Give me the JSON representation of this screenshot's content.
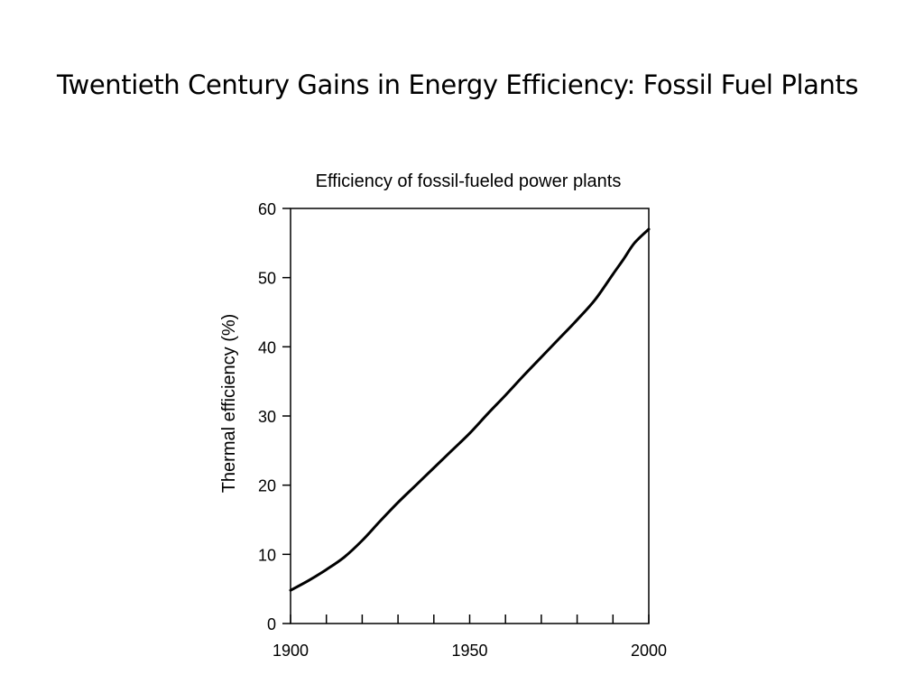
{
  "slide": {
    "title": "Twentieth Century Gains in Energy Efficiency: Fossil Fuel Plants"
  },
  "chart_data": {
    "type": "line",
    "title": "Efficiency of fossil-fueled power plants",
    "xlabel": "",
    "ylabel": "Thermal efficiency (%)",
    "xlim": [
      1900,
      2000
    ],
    "ylim": [
      0,
      60
    ],
    "xticks": [
      1900,
      1950,
      2000
    ],
    "x_minor_step": 10,
    "yticks": [
      0,
      10,
      20,
      30,
      40,
      50,
      60
    ],
    "grid": false,
    "line_color": "#000000",
    "series": [
      {
        "x": [
          1900,
          1905,
          1910,
          1915,
          1920,
          1925,
          1930,
          1935,
          1940,
          1945,
          1950,
          1955,
          1960,
          1965,
          1970,
          1975,
          1980,
          1985,
          1990,
          1993,
          1996,
          2000
        ],
        "y": [
          4.8,
          6.2,
          7.8,
          9.6,
          12.0,
          14.8,
          17.5,
          20.0,
          22.5,
          25.0,
          27.5,
          30.3,
          33.0,
          35.8,
          38.5,
          41.2,
          43.9,
          46.8,
          50.5,
          52.7,
          55.0,
          57.0
        ]
      }
    ]
  }
}
